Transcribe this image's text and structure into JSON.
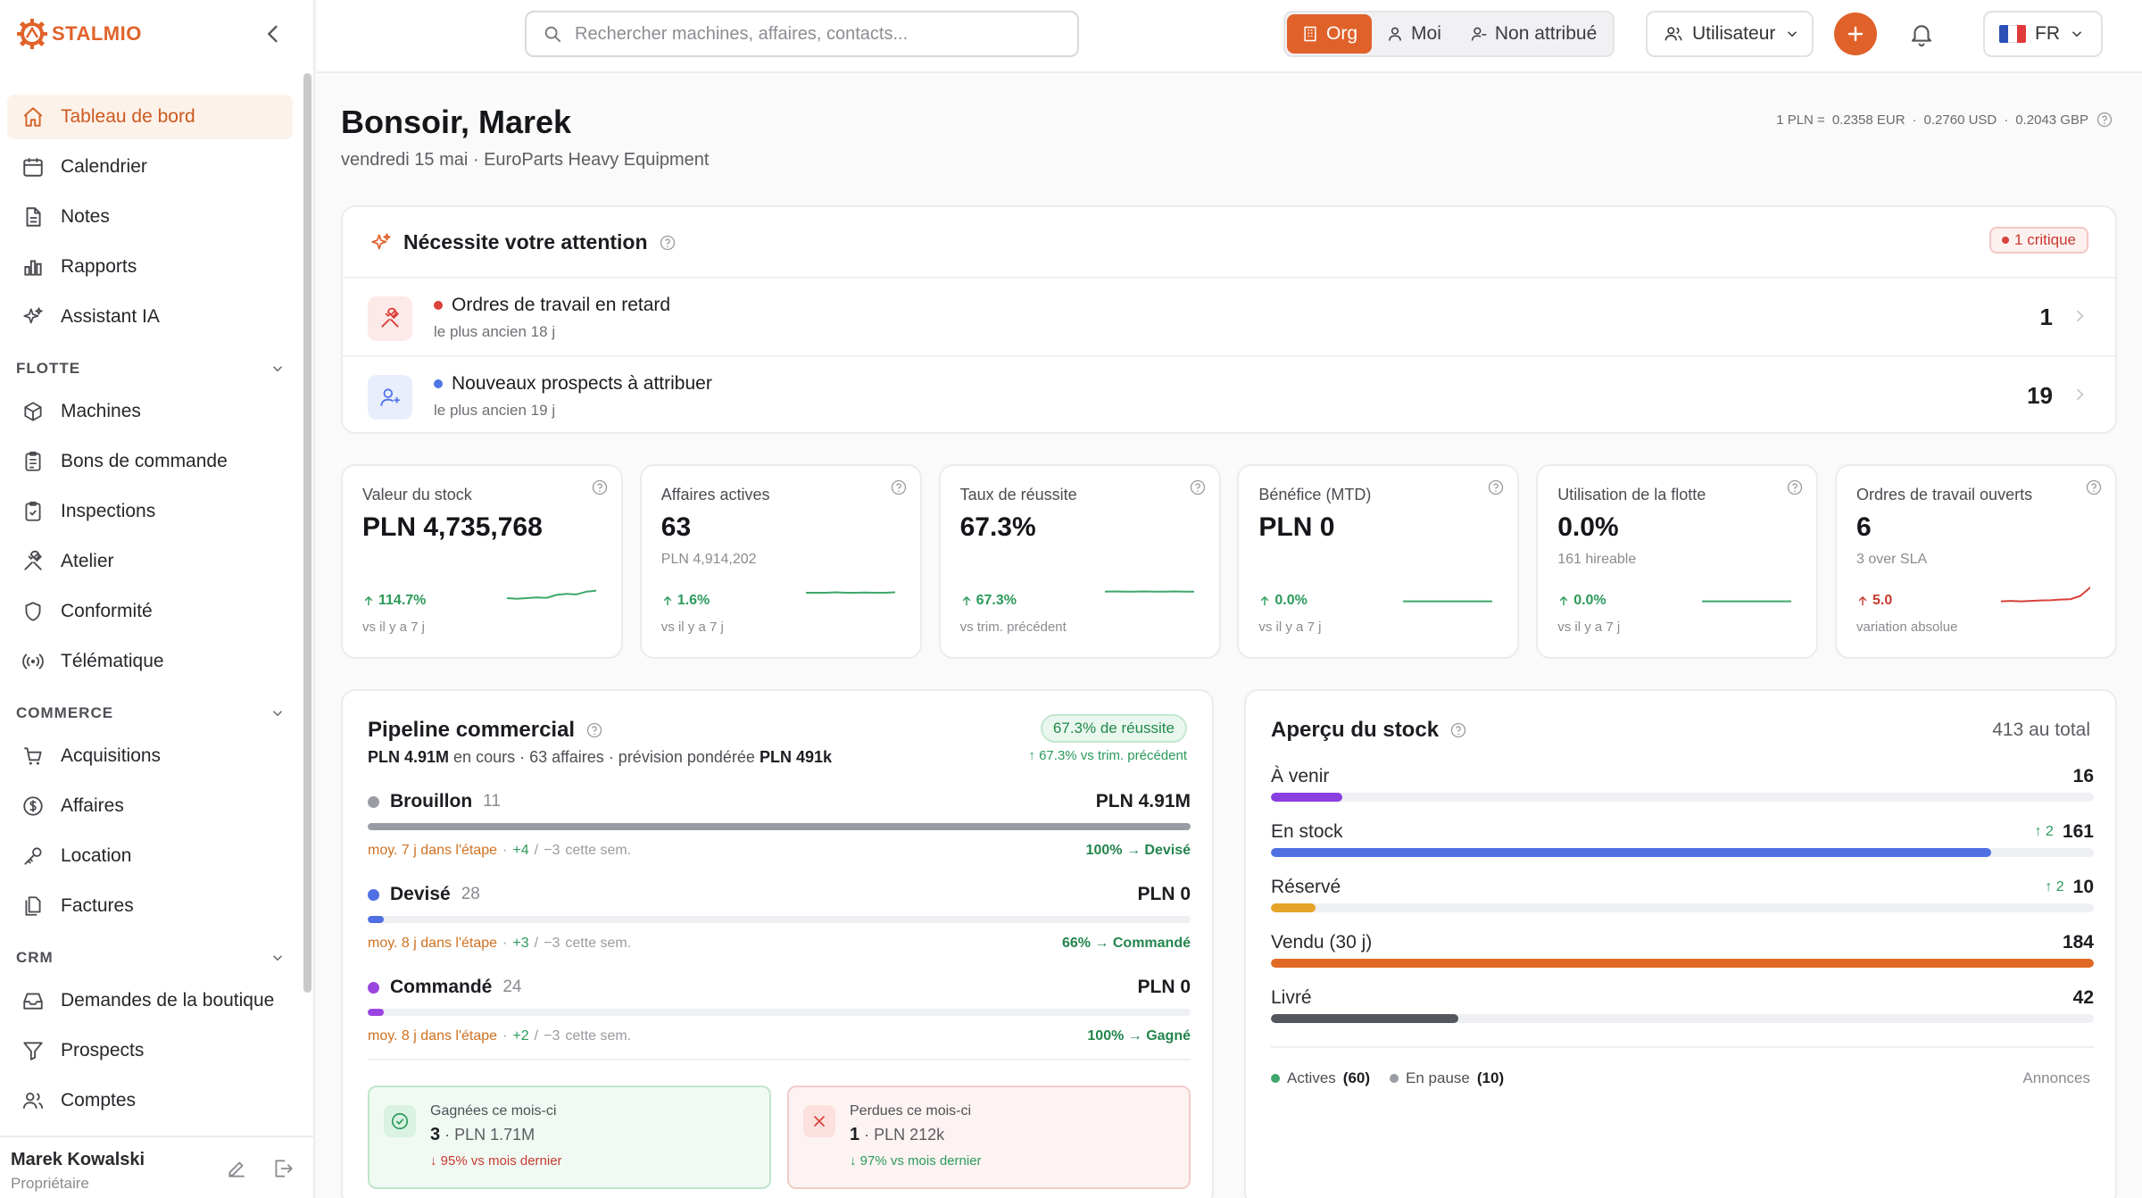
{
  "brand": {
    "name": "STALMIO"
  },
  "sidebar": {
    "items": [
      {
        "label": "Tableau de bord",
        "icon": "home-icon"
      },
      {
        "label": "Calendrier",
        "icon": "calendar-icon"
      },
      {
        "label": "Notes",
        "icon": "file-icon"
      },
      {
        "label": "Rapports",
        "icon": "bar-chart-icon"
      },
      {
        "label": "Assistant IA",
        "icon": "sparkles-icon"
      }
    ],
    "sections": [
      {
        "title": "FLOTTE",
        "items": [
          {
            "label": "Machines",
            "icon": "cube-icon"
          },
          {
            "label": "Bons de commande",
            "icon": "clipboard-icon"
          },
          {
            "label": "Inspections",
            "icon": "clipboard-check-icon"
          },
          {
            "label": "Atelier",
            "icon": "wrench-icon"
          },
          {
            "label": "Conformité",
            "icon": "shield-icon"
          },
          {
            "label": "Télématique",
            "icon": "radio-icon"
          }
        ]
      },
      {
        "title": "COMMERCE",
        "items": [
          {
            "label": "Acquisitions",
            "icon": "cart-icon"
          },
          {
            "label": "Affaires",
            "icon": "dollar-icon"
          },
          {
            "label": "Location",
            "icon": "key-icon"
          },
          {
            "label": "Factures",
            "icon": "files-icon"
          }
        ]
      },
      {
        "title": "CRM",
        "items": [
          {
            "label": "Demandes de la boutique",
            "icon": "inbox-icon"
          },
          {
            "label": "Prospects",
            "icon": "filter-icon"
          },
          {
            "label": "Comptes",
            "icon": "users-icon"
          }
        ]
      }
    ],
    "user": {
      "name": "Marek Kowalski",
      "role": "Propriétaire"
    }
  },
  "topbar": {
    "search_placeholder": "Rechercher machines, affaires, contacts...",
    "scope": [
      "Org",
      "Moi",
      "Non attribué"
    ],
    "user_filter": "Utilisateur",
    "language": "FR"
  },
  "header": {
    "greeting": "Bonsoir, Marek",
    "subtitle": "vendredi 15 mai · EuroParts Heavy Equipment",
    "rates": {
      "prefix": "1 PLN =",
      "eur": "0.2358 EUR",
      "usd": "0.2760 USD",
      "gbp": "0.2043 GBP",
      "sep": "·"
    }
  },
  "attention": {
    "title": "Nécessite votre attention",
    "badge": "1 critique",
    "rows": [
      {
        "label": "Ordres de travail en retard",
        "sub": "le plus ancien 18 j",
        "count": "1",
        "color": "#d9423a"
      },
      {
        "label": "Nouveaux prospects à attribuer",
        "sub": "le plus ancien 19 j",
        "count": "19",
        "color": "#4f74e3"
      }
    ]
  },
  "kpis": [
    {
      "label": "Valeur du stock",
      "value": "PLN 4,735,768",
      "sub": "",
      "delta": "114.7%",
      "dir": "up",
      "cmp": "vs il y a 7 j",
      "spark": [
        0.25,
        0.22,
        0.25,
        0.28,
        0.26,
        0.4,
        0.45,
        0.42,
        0.55,
        0.6
      ],
      "color": "#3ea86a"
    },
    {
      "label": "Affaires actives",
      "value": "63",
      "sub": "PLN 4,914,202",
      "delta": "1.6%",
      "dir": "up",
      "cmp": "vs il y a 7 j",
      "spark": [
        0.5,
        0.5,
        0.5,
        0.52,
        0.5,
        0.5,
        0.51,
        0.5,
        0.5,
        0.52
      ],
      "color": "#3ea86a"
    },
    {
      "label": "Taux de réussite",
      "value": "67.3%",
      "sub": "",
      "delta": "67.3%",
      "dir": "up",
      "cmp": "vs trim. précédent",
      "spark": [
        0.55,
        0.56,
        0.55,
        0.55,
        0.56,
        0.55,
        0.55,
        0.56,
        0.55,
        0.55
      ],
      "color": "#3ea86a"
    },
    {
      "label": "Bénéfice (MTD)",
      "value": "PLN 0",
      "sub": "",
      "delta": "0.0%",
      "dir": "up",
      "cmp": "vs il y a 7 j",
      "spark": [
        0.1,
        0.1,
        0.1,
        0.1,
        0.1,
        0.1,
        0.1,
        0.1,
        0.1,
        0.1
      ],
      "color": "#3ea86a"
    },
    {
      "label": "Utilisation de la flotte",
      "value": "0.0%",
      "sub": "161 hireable",
      "delta": "0.0%",
      "dir": "up",
      "cmp": "vs il y a 7 j",
      "spark": [
        0.1,
        0.1,
        0.1,
        0.1,
        0.1,
        0.1,
        0.1,
        0.1,
        0.1,
        0.1
      ],
      "color": "#3ea86a"
    },
    {
      "label": "Ordres de travail ouverts",
      "value": "6",
      "sub": "3 over SLA",
      "delta": "5.0",
      "dir": "up",
      "cmp": "variation absolue",
      "spark": [
        0.1,
        0.12,
        0.1,
        0.12,
        0.14,
        0.15,
        0.18,
        0.2,
        0.35,
        0.75
      ],
      "color": "#d9423a"
    }
  ],
  "pipeline": {
    "title": "Pipeline commercial",
    "sub_amount": "PLN 4.91M",
    "sub_text1": "en cours · 63 affaires · prévision pondérée",
    "sub_forecast": "PLN 491k",
    "win_badge": "67.3% de réussite",
    "win_vs": "↑ 67.3% vs trim. précédent",
    "stages": [
      {
        "name": "Brouillon",
        "count": "11",
        "value": "PLN 4.91M",
        "fill": 1.0,
        "color": "#9a9ca3",
        "dot": "#9a9ca3",
        "avg": "moy. 7 j dans l'étape",
        "plus": "+4",
        "minus": "−3",
        "week": "cette sem.",
        "conv": "100% → Devisé"
      },
      {
        "name": "Devisé",
        "count": "28",
        "value": "PLN 0",
        "fill": 0.02,
        "color": "#4f6fe3",
        "dot": "#4f6fe3",
        "avg": "moy. 8 j dans l'étape",
        "plus": "+3",
        "minus": "−3",
        "week": "cette sem.",
        "conv": "66% → Commandé"
      },
      {
        "name": "Commandé",
        "count": "24",
        "value": "PLN 0",
        "fill": 0.02,
        "color": "#9a45e0",
        "dot": "#9a45e0",
        "avg": "moy. 8 j dans l'étape",
        "plus": "+2",
        "minus": "−3",
        "week": "cette sem.",
        "conv": "100% → Gagné"
      }
    ],
    "won": {
      "title": "Gagnées ce mois-ci",
      "count": "3",
      "amount": "· PLN 1.71M",
      "delta": "↓ 95% vs mois dernier"
    },
    "lost": {
      "title": "Perdues ce mois-ci",
      "count": "1",
      "amount": "· PLN 212k",
      "delta": "↓ 97% vs mois dernier"
    }
  },
  "stock": {
    "title": "Aperçu du stock",
    "total": "413 au total",
    "rows": [
      {
        "label": "À venir",
        "value": "16",
        "up": "",
        "fill": 0.087,
        "color": "#8a3fe0"
      },
      {
        "label": "En stock",
        "value": "161",
        "up": "↑ 2",
        "fill": 0.875,
        "color": "#4f6fe3"
      },
      {
        "label": "Réservé",
        "value": "10",
        "up": "↑ 2",
        "fill": 0.054,
        "color": "#e6a329"
      },
      {
        "label": "Vendu (30 j)",
        "value": "184",
        "up": "",
        "fill": 1.0,
        "color": "#e06a25"
      },
      {
        "label": "Livré",
        "value": "42",
        "up": "",
        "fill": 0.228,
        "color": "#55575e"
      }
    ],
    "legend": {
      "active_label": "Actives",
      "active_count": "(60)",
      "paused_label": "En pause",
      "paused_count": "(10)",
      "link": "Annonces"
    }
  }
}
